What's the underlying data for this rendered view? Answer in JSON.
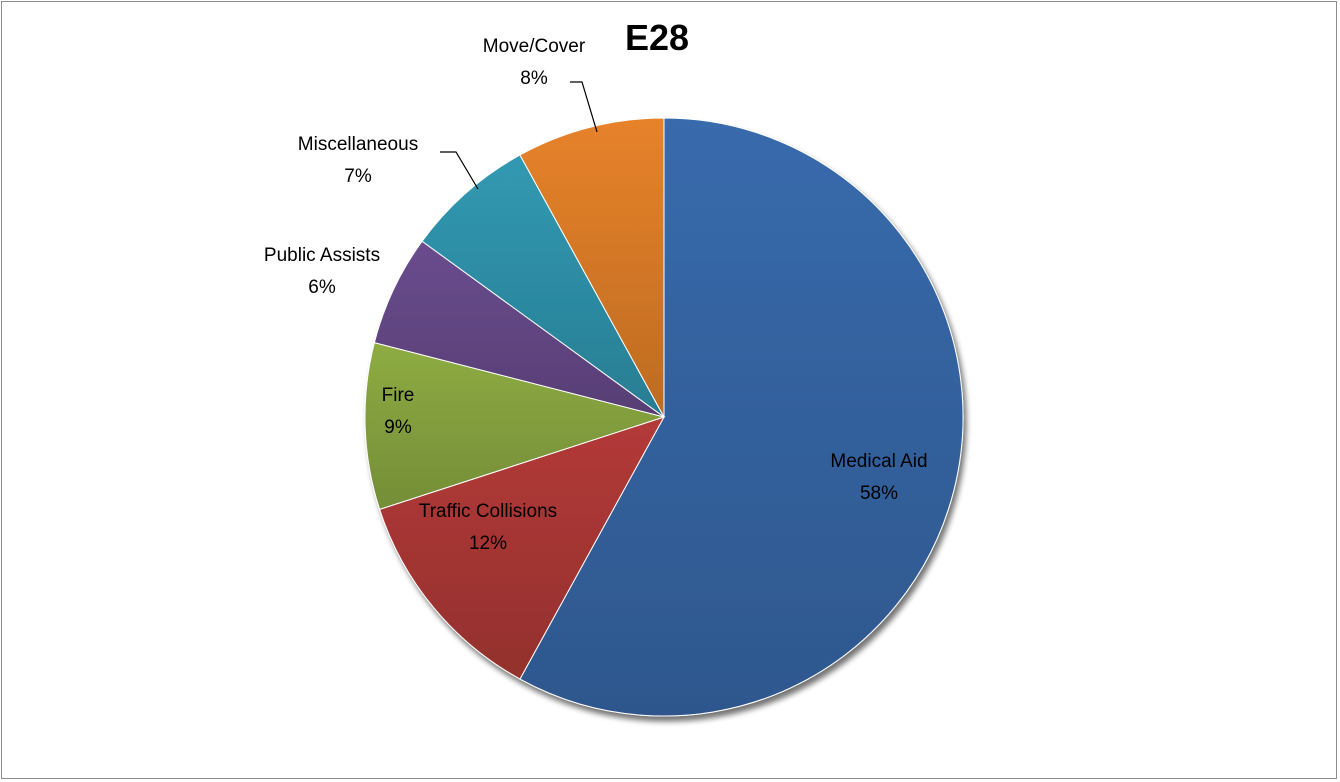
{
  "chart_data": {
    "type": "pie",
    "title": "E28",
    "legend": "none",
    "start_angle_deg": 0,
    "direction": "clockwise",
    "slices": [
      {
        "label": "Medical Aid",
        "value": 58,
        "display": "58%",
        "color": "#386AAC"
      },
      {
        "label": "Traffic Collisions",
        "value": 12,
        "display": "12%",
        "color": "#B33A38"
      },
      {
        "label": "Fire",
        "value": 9,
        "display": "9%",
        "color": "#8EAC43"
      },
      {
        "label": "Public Assists",
        "value": 6,
        "display": "6%",
        "color": "#6A4C8E"
      },
      {
        "label": "Miscellaneous",
        "value": 7,
        "display": "7%",
        "color": "#3199B2"
      },
      {
        "label": "Move/Cover",
        "value": 8,
        "display": "8%",
        "color": "#E7822A"
      }
    ]
  }
}
